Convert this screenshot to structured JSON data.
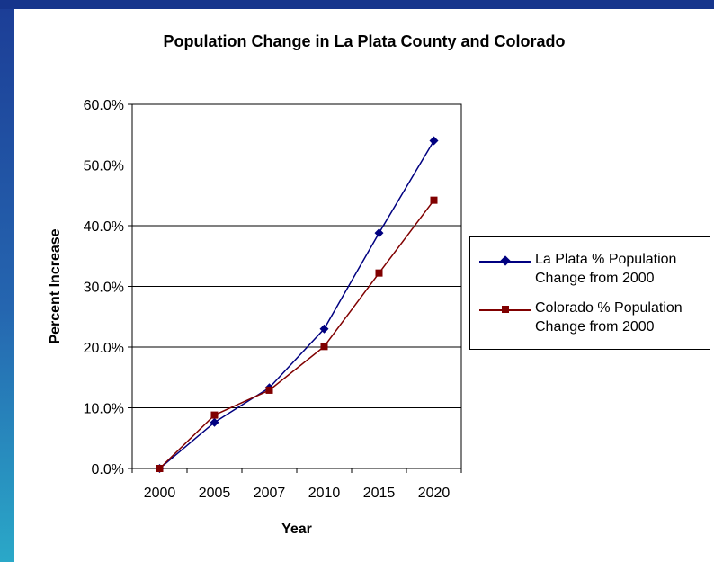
{
  "chart_data": {
    "type": "line",
    "title": "Population Change in La Plata County and Colorado",
    "xlabel": "Year",
    "ylabel": "Percent Increase",
    "categories": [
      "2000",
      "2005",
      "2007",
      "2010",
      "2015",
      "2020"
    ],
    "y_ticks": [
      "0.0%",
      "10.0%",
      "20.0%",
      "30.0%",
      "40.0%",
      "50.0%",
      "60.0%"
    ],
    "ylim": [
      0,
      60
    ],
    "grid": true,
    "legend_position": "right",
    "series": [
      {
        "name": "La Plata % Population Change from 2000",
        "color": "#000080",
        "marker": "diamond",
        "values": [
          0.0,
          7.6,
          13.3,
          23.0,
          38.8,
          54.0
        ]
      },
      {
        "name": "Colorado % Population Change from 2000",
        "color": "#800000",
        "marker": "square",
        "values": [
          0.0,
          8.8,
          12.9,
          20.1,
          32.2,
          44.2
        ]
      }
    ]
  }
}
